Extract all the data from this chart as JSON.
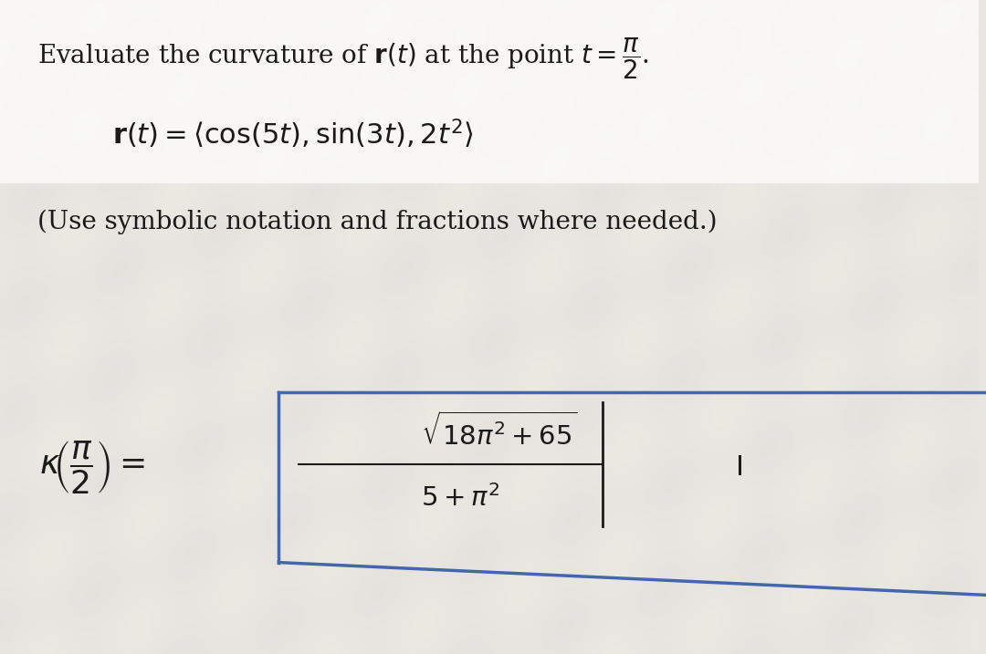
{
  "bg_color": "#e8e6e0",
  "text_color": "#1a1a1a",
  "box_color": "#4466aa",
  "fig_width": 10.8,
  "fig_height": 7.17,
  "line1_text": "Evaluate the curvature of $\\mathbf{r}(t)$ at the point $t = \\dfrac{\\pi}{2}$.",
  "line2_text": "$\\mathbf{r}(t) = \\left\\langle \\cos(5t), \\sin(3t), 2t^2 \\right\\rangle$",
  "line3_text": "(Use symbolic notation and fractions where needed.)",
  "lhs_text": "$\\kappa\\!\\left(\\dfrac{\\pi}{2}\\right) = $",
  "numerator_text": "$\\sqrt{18\\pi^2 + 65}$",
  "denominator_text": "$5 + \\pi^2$"
}
